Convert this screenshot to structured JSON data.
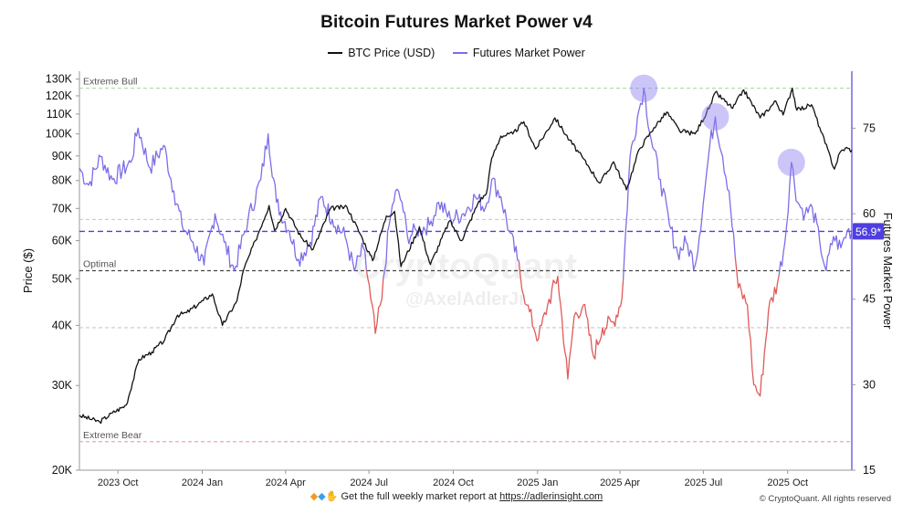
{
  "chart_data": {
    "type": "line",
    "title": "Bitcoin Futures Market Power v4",
    "watermark": [
      "CryptoQuant",
      "@AxelAdlerJr"
    ],
    "x_ticks": [
      "2023 Oct",
      "2024 Jan",
      "2024 Apr",
      "2024 Jul",
      "2024 Oct",
      "2025 Jan",
      "2025 Apr",
      "2025 Jul",
      "2025 Oct"
    ],
    "x_range": [
      "2023-08-20",
      "2025-12-10"
    ],
    "y_left": {
      "label": "Price ($)",
      "scale": "log",
      "range": [
        20000,
        135000
      ],
      "ticks": [
        {
          "value": 20000,
          "label": "20K"
        },
        {
          "value": 30000,
          "label": "30K"
        },
        {
          "value": 40000,
          "label": "40K"
        },
        {
          "value": 50000,
          "label": "50K"
        },
        {
          "value": 60000,
          "label": "60K"
        },
        {
          "value": 70000,
          "label": "70K"
        },
        {
          "value": 80000,
          "label": "80K"
        },
        {
          "value": 90000,
          "label": "90K"
        },
        {
          "value": 100000,
          "label": "100K"
        },
        {
          "value": 110000,
          "label": "110K"
        },
        {
          "value": 120000,
          "label": "120K"
        },
        {
          "value": 130000,
          "label": "130K"
        }
      ]
    },
    "y_right": {
      "label": "Futures Market Power",
      "range": [
        15,
        85
      ],
      "ticks": [
        {
          "value": 15,
          "label": "15"
        },
        {
          "value": 30,
          "label": "30"
        },
        {
          "value": 45,
          "label": "45"
        },
        {
          "value": 60,
          "label": "60"
        },
        {
          "value": 75,
          "label": "75"
        }
      ]
    },
    "reference_lines": [
      {
        "label": "Extreme Bull",
        "value": 82
      },
      {
        "label": "Optimal",
        "value": 50
      },
      {
        "label": "",
        "value": 40
      },
      {
        "label": "",
        "value": 59
      },
      {
        "label": "Extreme Bear",
        "value": 20
      }
    ],
    "current_value": {
      "label": "56.9*",
      "value": 56.9
    },
    "highlights": [
      {
        "date": "2025-04-27",
        "value": 82
      },
      {
        "date": "2025-07-14",
        "value": 77
      },
      {
        "date": "2025-10-05",
        "value": 69
      }
    ],
    "colors": {
      "price": "#111111",
      "power": "#7b6ee8",
      "power_low": "#e05a5a",
      "current": "#4f3fe0",
      "bull": "#8fd18f",
      "bear": "#e87aa8"
    },
    "series": [
      {
        "name": "BTC Price (USD)",
        "axis": "left",
        "points": [
          [
            "2023-08-20",
            26000
          ],
          [
            "2023-09-11",
            25200
          ],
          [
            "2023-09-25",
            26300
          ],
          [
            "2023-10-10",
            27300
          ],
          [
            "2023-10-24",
            34000
          ],
          [
            "2023-11-07",
            35200
          ],
          [
            "2023-11-21",
            37300
          ],
          [
            "2023-12-05",
            42000
          ],
          [
            "2023-12-15",
            42500
          ],
          [
            "2024-01-02",
            45000
          ],
          [
            "2024-01-12",
            46500
          ],
          [
            "2024-01-23",
            40000
          ],
          [
            "2024-02-08",
            45000
          ],
          [
            "2024-02-15",
            52000
          ],
          [
            "2024-02-28",
            60000
          ],
          [
            "2024-03-14",
            71000
          ],
          [
            "2024-03-20",
            63000
          ],
          [
            "2024-04-01",
            70000
          ],
          [
            "2024-04-18",
            61000
          ],
          [
            "2024-05-01",
            57500
          ],
          [
            "2024-05-20",
            70000
          ],
          [
            "2024-06-07",
            70500
          ],
          [
            "2024-06-24",
            60500
          ],
          [
            "2024-07-05",
            54500
          ],
          [
            "2024-07-20",
            67500
          ],
          [
            "2024-07-29",
            69000
          ],
          [
            "2024-08-05",
            53000
          ],
          [
            "2024-08-25",
            64000
          ],
          [
            "2024-09-06",
            53500
          ],
          [
            "2024-09-27",
            66000
          ],
          [
            "2024-10-10",
            60000
          ],
          [
            "2024-10-29",
            72500
          ],
          [
            "2024-11-06",
            75000
          ],
          [
            "2024-11-12",
            89000
          ],
          [
            "2024-11-22",
            99000
          ],
          [
            "2024-12-05",
            100000
          ],
          [
            "2024-12-17",
            106000
          ],
          [
            "2024-12-30",
            93000
          ],
          [
            "2025-01-20",
            108000
          ],
          [
            "2025-02-05",
            97000
          ],
          [
            "2025-02-25",
            86000
          ],
          [
            "2025-03-10",
            79000
          ],
          [
            "2025-03-25",
            87500
          ],
          [
            "2025-04-08",
            76500
          ],
          [
            "2025-04-22",
            93000
          ],
          [
            "2025-05-08",
            103000
          ],
          [
            "2025-05-22",
            111000
          ],
          [
            "2025-06-05",
            101500
          ],
          [
            "2025-06-22",
            100000
          ],
          [
            "2025-07-10",
            116000
          ],
          [
            "2025-07-14",
            122000
          ],
          [
            "2025-08-02",
            113000
          ],
          [
            "2025-08-14",
            123500
          ],
          [
            "2025-09-01",
            108000
          ],
          [
            "2025-09-18",
            117000
          ],
          [
            "2025-09-26",
            109500
          ],
          [
            "2025-10-06",
            124500
          ],
          [
            "2025-10-11",
            112000
          ],
          [
            "2025-10-27",
            115000
          ],
          [
            "2025-11-05",
            103000
          ],
          [
            "2025-11-21",
            84500
          ],
          [
            "2025-11-27",
            91500
          ],
          [
            "2025-12-03",
            93500
          ],
          [
            "2025-12-10",
            92500
          ]
        ]
      },
      {
        "name": "Futures Market Power",
        "axis": "right",
        "points": [
          [
            "2023-08-20",
            68
          ],
          [
            "2023-08-30",
            65
          ],
          [
            "2023-09-12",
            70
          ],
          [
            "2023-09-25",
            66
          ],
          [
            "2023-10-15",
            69
          ],
          [
            "2023-10-23",
            75
          ],
          [
            "2023-11-05",
            68
          ],
          [
            "2023-11-20",
            72
          ],
          [
            "2023-12-01",
            64
          ],
          [
            "2023-12-10",
            58
          ],
          [
            "2023-12-22",
            55
          ],
          [
            "2024-01-03",
            51
          ],
          [
            "2024-01-15",
            60
          ],
          [
            "2024-01-25",
            55
          ],
          [
            "2024-02-05",
            50
          ],
          [
            "2024-02-20",
            59
          ],
          [
            "2024-03-05",
            66
          ],
          [
            "2024-03-13",
            74
          ],
          [
            "2024-03-22",
            62
          ],
          [
            "2024-04-05",
            57
          ],
          [
            "2024-04-15",
            52
          ],
          [
            "2024-04-28",
            55
          ],
          [
            "2024-05-10",
            63
          ],
          [
            "2024-05-22",
            59
          ],
          [
            "2024-06-05",
            56
          ],
          [
            "2024-06-15",
            50
          ],
          [
            "2024-06-25",
            54
          ],
          [
            "2024-07-03",
            45
          ],
          [
            "2024-07-08",
            39
          ],
          [
            "2024-07-15",
            45
          ],
          [
            "2024-07-23",
            58
          ],
          [
            "2024-07-30",
            64
          ],
          [
            "2024-08-06",
            62
          ],
          [
            "2024-08-12",
            56
          ],
          [
            "2024-08-22",
            57
          ],
          [
            "2024-09-05",
            58
          ],
          [
            "2024-09-15",
            62
          ],
          [
            "2024-09-28",
            59
          ],
          [
            "2024-10-12",
            60
          ],
          [
            "2024-10-25",
            63
          ],
          [
            "2024-11-05",
            61
          ],
          [
            "2024-11-12",
            66
          ],
          [
            "2024-11-22",
            63
          ],
          [
            "2024-12-01",
            57
          ],
          [
            "2024-12-10",
            52
          ],
          [
            "2024-12-20",
            44
          ],
          [
            "2025-01-02",
            38
          ],
          [
            "2025-01-12",
            44
          ],
          [
            "2025-01-23",
            49
          ],
          [
            "2025-02-03",
            31
          ],
          [
            "2025-02-10",
            42
          ],
          [
            "2025-02-20",
            44
          ],
          [
            "2025-03-03",
            35
          ],
          [
            "2025-03-13",
            40
          ],
          [
            "2025-03-25",
            41
          ],
          [
            "2025-04-03",
            45
          ],
          [
            "2025-04-12",
            70
          ],
          [
            "2025-04-20",
            77
          ],
          [
            "2025-04-27",
            82
          ],
          [
            "2025-05-05",
            73
          ],
          [
            "2025-05-15",
            66
          ],
          [
            "2025-05-25",
            58
          ],
          [
            "2025-06-03",
            53
          ],
          [
            "2025-06-12",
            55
          ],
          [
            "2025-06-22",
            51
          ],
          [
            "2025-07-01",
            62
          ],
          [
            "2025-07-08",
            72
          ],
          [
            "2025-07-14",
            77
          ],
          [
            "2025-07-22",
            70
          ],
          [
            "2025-07-29",
            64
          ],
          [
            "2025-08-08",
            47
          ],
          [
            "2025-08-18",
            44
          ],
          [
            "2025-08-25",
            30
          ],
          [
            "2025-09-01",
            28
          ],
          [
            "2025-09-10",
            43
          ],
          [
            "2025-09-20",
            48
          ],
          [
            "2025-09-28",
            55
          ],
          [
            "2025-10-05",
            69
          ],
          [
            "2025-10-12",
            62
          ],
          [
            "2025-10-20",
            60
          ],
          [
            "2025-10-28",
            61
          ],
          [
            "2025-11-05",
            55
          ],
          [
            "2025-11-12",
            50
          ],
          [
            "2025-11-20",
            56
          ],
          [
            "2025-11-28",
            54
          ],
          [
            "2025-12-05",
            57
          ],
          [
            "2025-12-10",
            56.9
          ]
        ]
      }
    ]
  },
  "footer": {
    "icons": [
      "diamond-orange-icon",
      "diamond-blue-icon",
      "raised-hands-icon"
    ],
    "text": "Get the full weekly market report at",
    "link": "https://adlerinsight.com"
  },
  "copyright": "© CryptoQuant. All rights reserved"
}
